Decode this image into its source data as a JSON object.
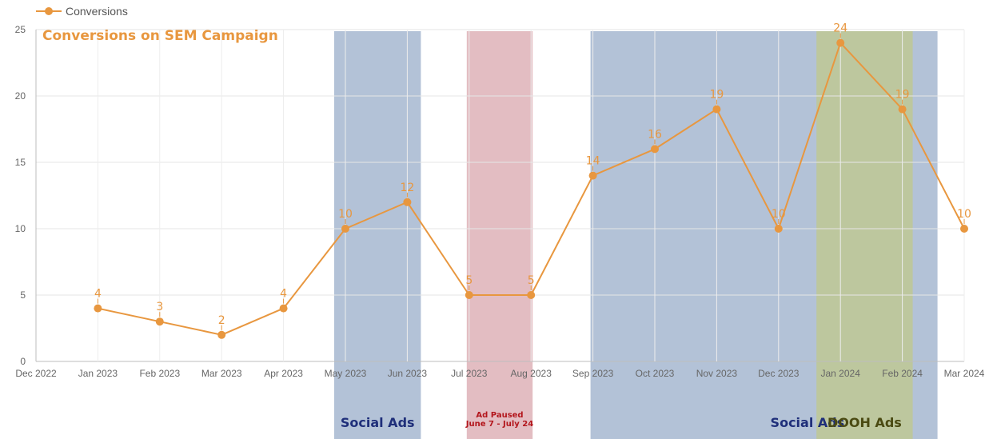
{
  "colors": {
    "line": "#e8973f",
    "social": "#9aaeca",
    "paused": "#d9a7ae",
    "dooh": "#bdc79e",
    "social_text": "#1f2f7a",
    "paused_text": "#b3161c",
    "dooh_text": "#4a4a12"
  },
  "chart_data": {
    "type": "line",
    "title": "Conversions on SEM Campaign",
    "categories": [
      "Dec 2022",
      "Jan 2023",
      "Feb 2023",
      "Mar 2023",
      "Apr 2023",
      "May 2023",
      "Jun 2023",
      "Jul 2023",
      "Aug 2023",
      "Sep 2023",
      "Oct 2023",
      "Nov 2023",
      "Dec 2023",
      "Jan 2024",
      "Feb 2024",
      "Mar 2024"
    ],
    "series": [
      {
        "name": "Conversions",
        "x": [
          "Jan 2023",
          "Feb 2023",
          "Mar 2023",
          "Apr 2023",
          "May 2023",
          "Jun 2023",
          "Jul 2023",
          "Aug 2023",
          "Sep 2023",
          "Oct 2023",
          "Nov 2023",
          "Dec 2023",
          "Jan 2024",
          "Feb 2024",
          "Mar 2024"
        ],
        "values": [
          4,
          3,
          2,
          4,
          10,
          12,
          5,
          5,
          14,
          16,
          19,
          10,
          24,
          19,
          10
        ]
      }
    ],
    "yticks": [
      0,
      5,
      10,
      15,
      20,
      25
    ],
    "ylim": [
      0,
      25
    ],
    "grid": true,
    "legend": "top-left",
    "regions": [
      {
        "label": "Social Ads",
        "start": "May 2023",
        "end": "Jun 2023",
        "color_key": "social",
        "text_key": "social_text"
      },
      {
        "label": "Ad Paused",
        "sublabel": "June 7 - July 24",
        "start": "Jul 2023",
        "end": "Aug 2023",
        "color_key": "paused",
        "text_key": "paused_text"
      },
      {
        "label": "Social Ads",
        "start": "Sep 2023",
        "end": "Feb 2024",
        "color_key": "social",
        "text_key": "social_text"
      },
      {
        "label": "DOOH Ads",
        "start": "Jan 2024",
        "end": "Feb 2024",
        "color_key": "dooh",
        "text_key": "dooh_text"
      }
    ]
  }
}
